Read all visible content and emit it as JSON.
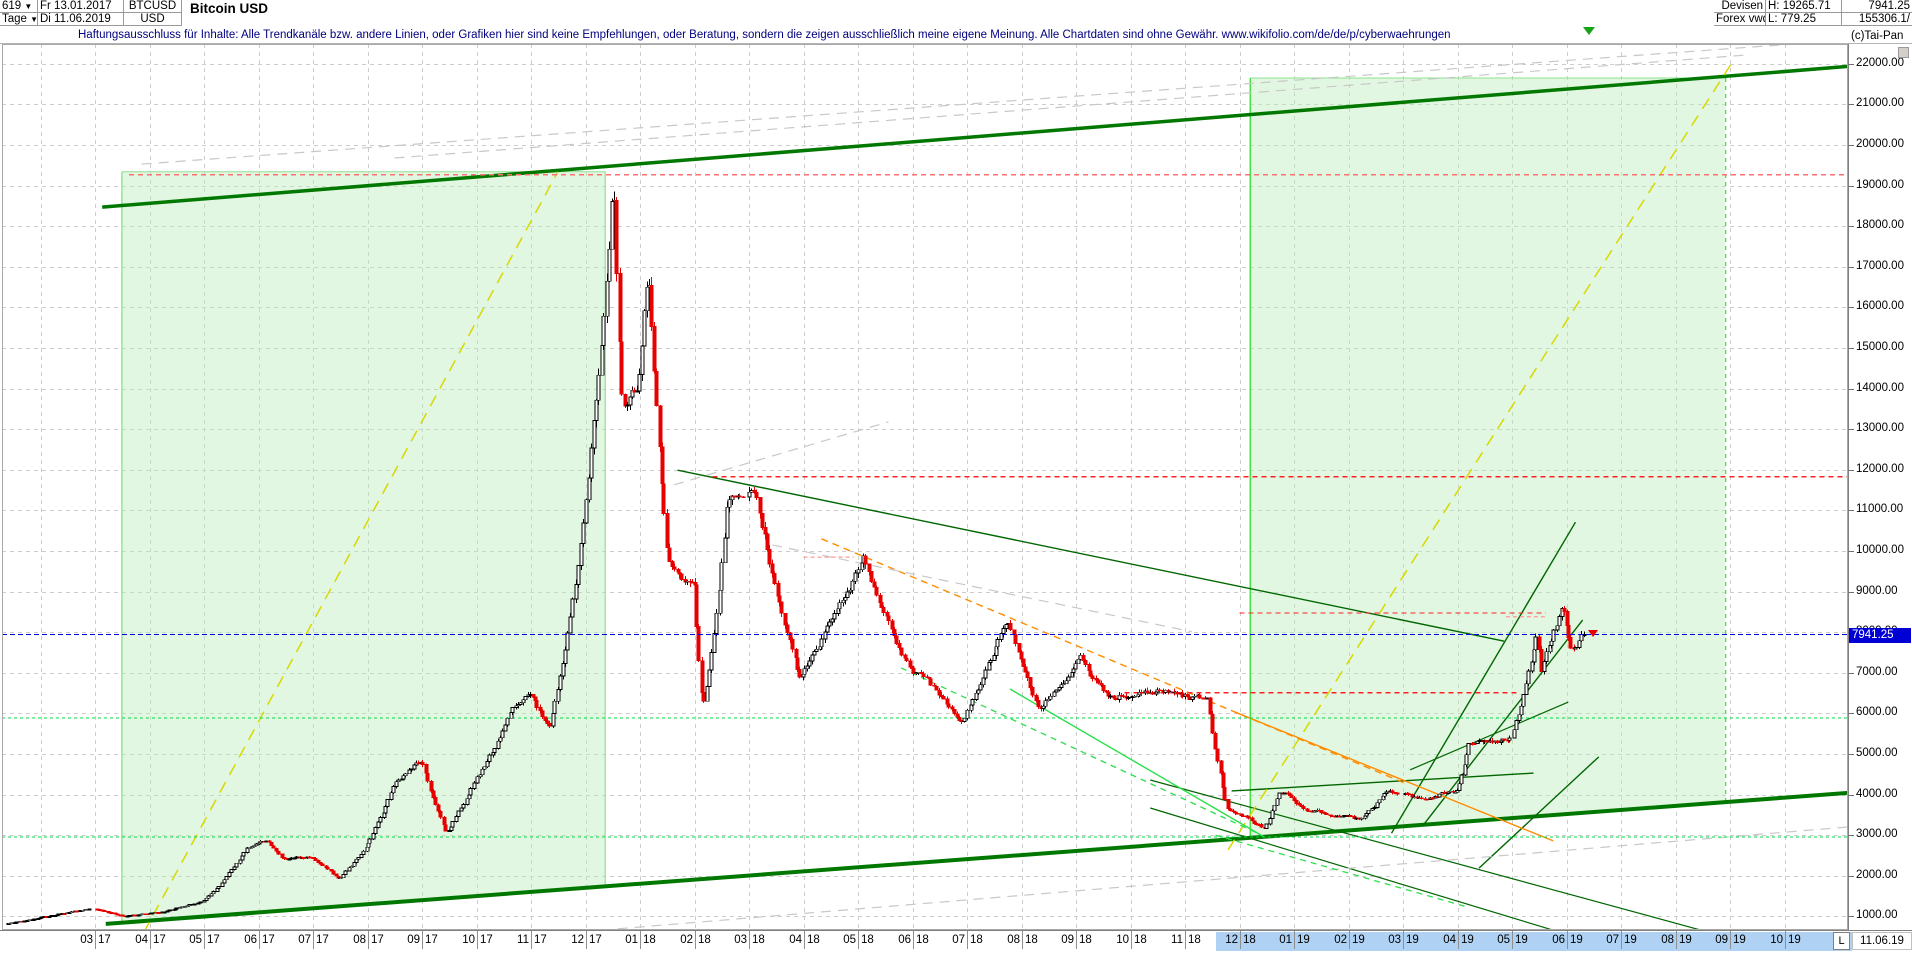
{
  "header": {
    "series_id": "619",
    "period": "Tage",
    "start_date": "Fr 13.01.2017",
    "end_date": "Di 11.06.2019",
    "symbol": "BTCUSD",
    "currency": "USD",
    "title": "Bitcoin USD",
    "market": "Devisen",
    "source": "Forex vwd",
    "high_label": "H: 19265.71",
    "low_label": "L: 779.25",
    "last_price": "7941.25",
    "volume": "155306.1/",
    "copyright": "(c)Tai-Pan"
  },
  "disclaimer": "Haftungsausschluss für Inhalte: Alle Trendkanäle bzw. andere Linien, oder Grafiken hier sind keine Empfehlungen, oder Beratung, sondern die zeigen ausschließlich meine eigene Meinung. Alle Chartdaten sind ohne Gewähr.  www.wikifolio.com/de/de/p/cyberwaehrungen",
  "x_axis": {
    "month_labels": [
      "03 17",
      "04 17",
      "05 17",
      "06 17",
      "07 17",
      "08 17",
      "09 17",
      "10 17",
      "11 17",
      "12 17",
      "01 18",
      "02 18",
      "03 18",
      "04 18",
      "05 18",
      "06 18",
      "07 18",
      "08 18",
      "09 18",
      "10 18",
      "11 18",
      "12 18",
      "01 19",
      "02 19",
      "03 19",
      "04 19",
      "05 19",
      "06 19",
      "07 19",
      "08 19",
      "09 19",
      "10 19"
    ],
    "highlight_from_index": 21,
    "end_marker": "L",
    "end_date": "11.06.19",
    "highlight_color": "#aed1f4"
  },
  "y_axis": {
    "max": 22000,
    "min": 1000,
    "step": 1000,
    "format_suffix": ".00",
    "price_tag": "7941.25"
  },
  "chart_data": {
    "type": "candlestick",
    "instrument": "BTCUSD",
    "title": "Bitcoin USD",
    "period_high": 19265.71,
    "period_low": 779.25,
    "last": 7941.25,
    "ylim": [
      1000,
      22000
    ],
    "grid": true,
    "up_color": "#000000",
    "down_color": "#e60000",
    "candles": {
      "count": 619,
      "start": "2017-01-13",
      "end": "2019-06-11",
      "noise_seed": 20170113,
      "noise_body": 0.02,
      "noise_wick": 0.013,
      "clamp_high": 19265.71,
      "clamp_low": 780
    },
    "waypoints": [
      [
        "2017-01-13",
        820
      ],
      [
        "2017-02-01",
        970
      ],
      [
        "2017-03-01",
        1190
      ],
      [
        "2017-03-18",
        1000
      ],
      [
        "2017-04-10",
        1120
      ],
      [
        "2017-05-01",
        1380
      ],
      [
        "2017-05-25",
        2680
      ],
      [
        "2017-06-06",
        2880
      ],
      [
        "2017-06-15",
        2380
      ],
      [
        "2017-06-30",
        2480
      ],
      [
        "2017-07-16",
        1930
      ],
      [
        "2017-08-01",
        2750
      ],
      [
        "2017-08-17",
        4350
      ],
      [
        "2017-09-01",
        4850
      ],
      [
        "2017-09-15",
        3050
      ],
      [
        "2017-10-01",
        4350
      ],
      [
        "2017-10-21",
        6050
      ],
      [
        "2017-11-01",
        6500
      ],
      [
        "2017-11-12",
        5650
      ],
      [
        "2017-12-01",
        10900
      ],
      [
        "2017-12-17",
        19260
      ],
      [
        "2017-12-22",
        13600
      ],
      [
        "2017-12-31",
        14000
      ],
      [
        "2018-01-06",
        17050
      ],
      [
        "2018-01-17",
        9800
      ],
      [
        "2018-02-01",
        9100
      ],
      [
        "2018-02-06",
        6050
      ],
      [
        "2018-02-20",
        11300
      ],
      [
        "2018-03-05",
        11550
      ],
      [
        "2018-03-30",
        6900
      ],
      [
        "2018-05-05",
        9800
      ],
      [
        "2018-05-28",
        7200
      ],
      [
        "2018-06-10",
        6750
      ],
      [
        "2018-06-29",
        5850
      ],
      [
        "2018-07-24",
        8380
      ],
      [
        "2018-08-11",
        6100
      ],
      [
        "2018-09-04",
        7350
      ],
      [
        "2018-09-20",
        6400
      ],
      [
        "2018-10-15",
        6550
      ],
      [
        "2018-11-14",
        6350
      ],
      [
        "2018-11-25",
        3700
      ],
      [
        "2018-12-15",
        3180
      ],
      [
        "2018-12-24",
        4100
      ],
      [
        "2019-01-10",
        3600
      ],
      [
        "2019-02-08",
        3380
      ],
      [
        "2019-02-24",
        4120
      ],
      [
        "2019-03-10",
        3880
      ],
      [
        "2019-04-01",
        4120
      ],
      [
        "2019-04-08",
        5280
      ],
      [
        "2019-05-01",
        5350
      ],
      [
        "2019-05-16",
        8050
      ],
      [
        "2019-05-17",
        6950
      ],
      [
        "2019-05-30",
        8750
      ],
      [
        "2019-06-04",
        7550
      ],
      [
        "2019-06-11",
        7941.25
      ]
    ],
    "levels": [
      {
        "name": "ath-line",
        "value": 19265.71,
        "from": "2017-03-20",
        "to": null,
        "color": "#ff7070",
        "dash": "5,4",
        "width": 1.2
      },
      {
        "name": "resistance-11830",
        "value": 11830,
        "from": "2018-02-11",
        "to": null,
        "color": "#ff2020",
        "dash": "5,4",
        "width": 1.2
      },
      {
        "name": "resistance-8470",
        "value": 8470,
        "from": "2018-12-01",
        "to": "2019-05-20",
        "color": "#ff2020",
        "dash": "5,4",
        "width": 1.2
      },
      {
        "name": "resistance-6510",
        "value": 6510,
        "from": "2018-09-28",
        "to": "2019-05-05",
        "color": "#ff2020",
        "dash": "5,4",
        "width": 1.2
      },
      {
        "name": "green-level-5885",
        "value": 5885,
        "from": null,
        "to": null,
        "color": "#00dd46",
        "dash": "3,3",
        "width": 1.2
      },
      {
        "name": "green-level-2955",
        "value": 2955,
        "from": null,
        "to": null,
        "color": "#00dd46",
        "dash": "3,3",
        "width": 1.2
      },
      {
        "name": "last-price-line",
        "value": 7941.25,
        "from": null,
        "to": null,
        "color": "#0000dd",
        "dash": "5,3",
        "width": 1.3
      }
    ],
    "trendlines": [
      {
        "name": "channel-top-major",
        "color": "#007800",
        "width": 3.5,
        "dash": null,
        "points": [
          [
            "2017-03-05",
            18470
          ],
          [
            "2019-12-05",
            22040
          ]
        ]
      },
      {
        "name": "support-lower-major",
        "color": "#007800",
        "width": 4,
        "dash": null,
        "points": [
          [
            "2017-03-07",
            815
          ],
          [
            "2019-12-05",
            4140
          ]
        ]
      },
      {
        "name": "downtrend-2018",
        "color": "#006600",
        "width": 1.4,
        "dash": null,
        "points": [
          [
            "2018-01-22",
            11990
          ],
          [
            "2019-04-27",
            7780
          ]
        ]
      },
      {
        "name": "base-2019",
        "color": "#006600",
        "width": 1.4,
        "dash": null,
        "points": [
          [
            "2018-11-27",
            4090
          ],
          [
            "2019-05-13",
            4530
          ]
        ]
      },
      {
        "name": "rally-steep-a",
        "color": "#006600",
        "width": 1.4,
        "dash": null,
        "points": [
          [
            "2019-02-25",
            3050
          ],
          [
            "2019-06-06",
            10710
          ]
        ]
      },
      {
        "name": "rally-steep-b",
        "color": "#006600",
        "width": 1.4,
        "dash": null,
        "points": [
          [
            "2019-03-12",
            3230
          ],
          [
            "2019-06-10",
            8300
          ]
        ]
      },
      {
        "name": "rally-steep-c",
        "color": "#006600",
        "width": 1.4,
        "dash": null,
        "points": [
          [
            "2019-04-13",
            2190
          ],
          [
            "2019-06-19",
            4930
          ]
        ]
      },
      {
        "name": "minor-resistance-2019",
        "color": "#006600",
        "width": 1.2,
        "dash": null,
        "points": [
          [
            "2019-03-05",
            4610
          ],
          [
            "2019-06-02",
            6280
          ]
        ]
      },
      {
        "name": "breakdown-fan-1",
        "color": "#006600",
        "width": 1.2,
        "dash": null,
        "points": [
          [
            "2018-10-12",
            4360
          ],
          [
            "2019-08-17",
            640
          ]
        ]
      },
      {
        "name": "breakdown-fan-2",
        "color": "#006600",
        "width": 1.2,
        "dash": null,
        "points": [
          [
            "2018-10-12",
            3670
          ],
          [
            "2019-06-19",
            320
          ]
        ]
      },
      {
        "name": "yellow-trend-2017",
        "color": "#d8d800",
        "width": 1.5,
        "dash": "12,8",
        "points": [
          [
            "2017-03-28",
            590
          ],
          [
            "2017-11-16",
            19340
          ]
        ]
      },
      {
        "name": "yellow-trend-2019",
        "color": "#d8d800",
        "width": 1.5,
        "dash": "12,8",
        "points": [
          [
            "2018-11-25",
            2640
          ],
          [
            "2019-09-03",
            22090
          ]
        ]
      },
      {
        "name": "orange-downtrend-dashed",
        "color": "#ff8c00",
        "width": 1.4,
        "dash": "7,5",
        "points": [
          [
            "2018-04-11",
            10300
          ],
          [
            "2019-03-01",
            4300
          ]
        ]
      },
      {
        "name": "orange-downtrend-solid",
        "color": "#ff8c00",
        "width": 1.4,
        "dash": null,
        "points": [
          [
            "2018-11-29",
            6030
          ],
          [
            "2019-05-24",
            2860
          ]
        ]
      },
      {
        "name": "gray-channel-1",
        "color": "#c8c8c8",
        "width": 1.2,
        "dash": "10,7",
        "points": [
          [
            "2017-03-27",
            19530
          ],
          [
            "2019-12-05",
            22680
          ]
        ]
      },
      {
        "name": "gray-channel-2",
        "color": "#c8c8c8",
        "width": 1.2,
        "dash": "10,7",
        "points": [
          [
            "2017-08-16",
            19680
          ],
          [
            "2019-09-11",
            22220
          ]
        ]
      },
      {
        "name": "gray-seg-2018a",
        "color": "#c8c8c8",
        "width": 1.2,
        "dash": "10,7",
        "points": [
          [
            "2018-01-20",
            11630
          ],
          [
            "2018-05-18",
            13180
          ]
        ]
      },
      {
        "name": "gray-seg-2018b",
        "color": "#c8c8c8",
        "width": 1.2,
        "dash": "10,7",
        "points": [
          [
            "2018-03-14",
            10150
          ],
          [
            "2018-11-05",
            8010
          ]
        ]
      },
      {
        "name": "gray-bottom",
        "color": "#c8c8c8",
        "width": 1.2,
        "dash": "10,7",
        "points": [
          [
            "2017-11-21",
            590
          ],
          [
            "2019-12-05",
            3310
          ]
        ]
      },
      {
        "name": "lime-downtrend-solid",
        "color": "#2ce04c",
        "width": 1.4,
        "dash": null,
        "points": [
          [
            "2018-07-25",
            6600
          ],
          [
            "2018-12-15",
            2950
          ]
        ]
      },
      {
        "name": "lime-downtrend-dashed",
        "color": "#2ce04c",
        "width": 1.3,
        "dash": "6,5",
        "points": [
          [
            "2018-05-25",
            7120
          ],
          [
            "2018-12-10",
            3070
          ]
        ]
      },
      {
        "name": "lime-extension-dashed",
        "color": "#2ce04c",
        "width": 1.3,
        "dash": "6,5",
        "points": [
          [
            "2018-11-18",
            3000
          ],
          [
            "2019-04-05",
            1250
          ]
        ]
      },
      {
        "name": "pink-high-2018",
        "color": "#ff9898",
        "width": 1.2,
        "dash": "4,3",
        "points": [
          [
            "2018-04-01",
            9850
          ],
          [
            "2018-04-29",
            9850
          ]
        ]
      },
      {
        "name": "pink-high-2019",
        "color": "#ff9898",
        "width": 1.2,
        "dash": "4,3",
        "points": [
          [
            "2019-04-28",
            8380
          ],
          [
            "2019-05-21",
            8380
          ]
        ]
      }
    ],
    "regions": [
      {
        "name": "green-zone-2017",
        "from": "2017-03-16",
        "to": "2017-12-12",
        "top_value": 19340,
        "fill": "rgba(190,238,190,0.45)",
        "edge": "#8de28d",
        "right_edge_style": "solid"
      },
      {
        "name": "green-zone-2019",
        "from": "2018-12-07",
        "to": "2019-08-29",
        "top_value": 21650,
        "fill": "rgba(190,238,190,0.45)",
        "edge": "#8de28d",
        "left_edge_color": "#3ae03a",
        "right_edge_style": "dashed"
      }
    ]
  }
}
